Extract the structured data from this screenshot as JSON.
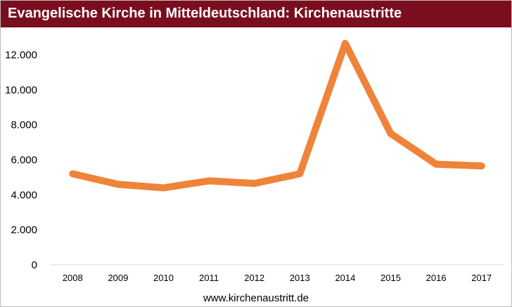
{
  "title": "Evangelische Kirche in Mitteldeutschland: Kirchenaustritte",
  "footer": "www.kirchenaustritt.de",
  "colors": {
    "title_bg": "#7a0e1e",
    "line": "#f0833a",
    "axis": "#d9d9d9",
    "text": "#000000"
  },
  "chart_data": {
    "type": "line",
    "title": "Evangelische Kirche in Mitteldeutschland: Kirchenaustritte",
    "xlabel": "",
    "ylabel": "",
    "categories": [
      "2008",
      "2009",
      "2010",
      "2011",
      "2012",
      "2013",
      "2014",
      "2015",
      "2016",
      "2017"
    ],
    "series": [
      {
        "values": [
          5200,
          4600,
          4400,
          4800,
          4650,
          5200,
          12650,
          7500,
          5750,
          5650
        ]
      }
    ],
    "ylim": [
      0,
      12000
    ],
    "yticks": [
      0,
      2000,
      4000,
      6000,
      8000,
      10000,
      12000
    ],
    "ytick_labels": [
      "0",
      "2.000",
      "4.000",
      "6.000",
      "8.000",
      "10.000",
      "12.000"
    ],
    "grid": false,
    "legend": "none"
  }
}
